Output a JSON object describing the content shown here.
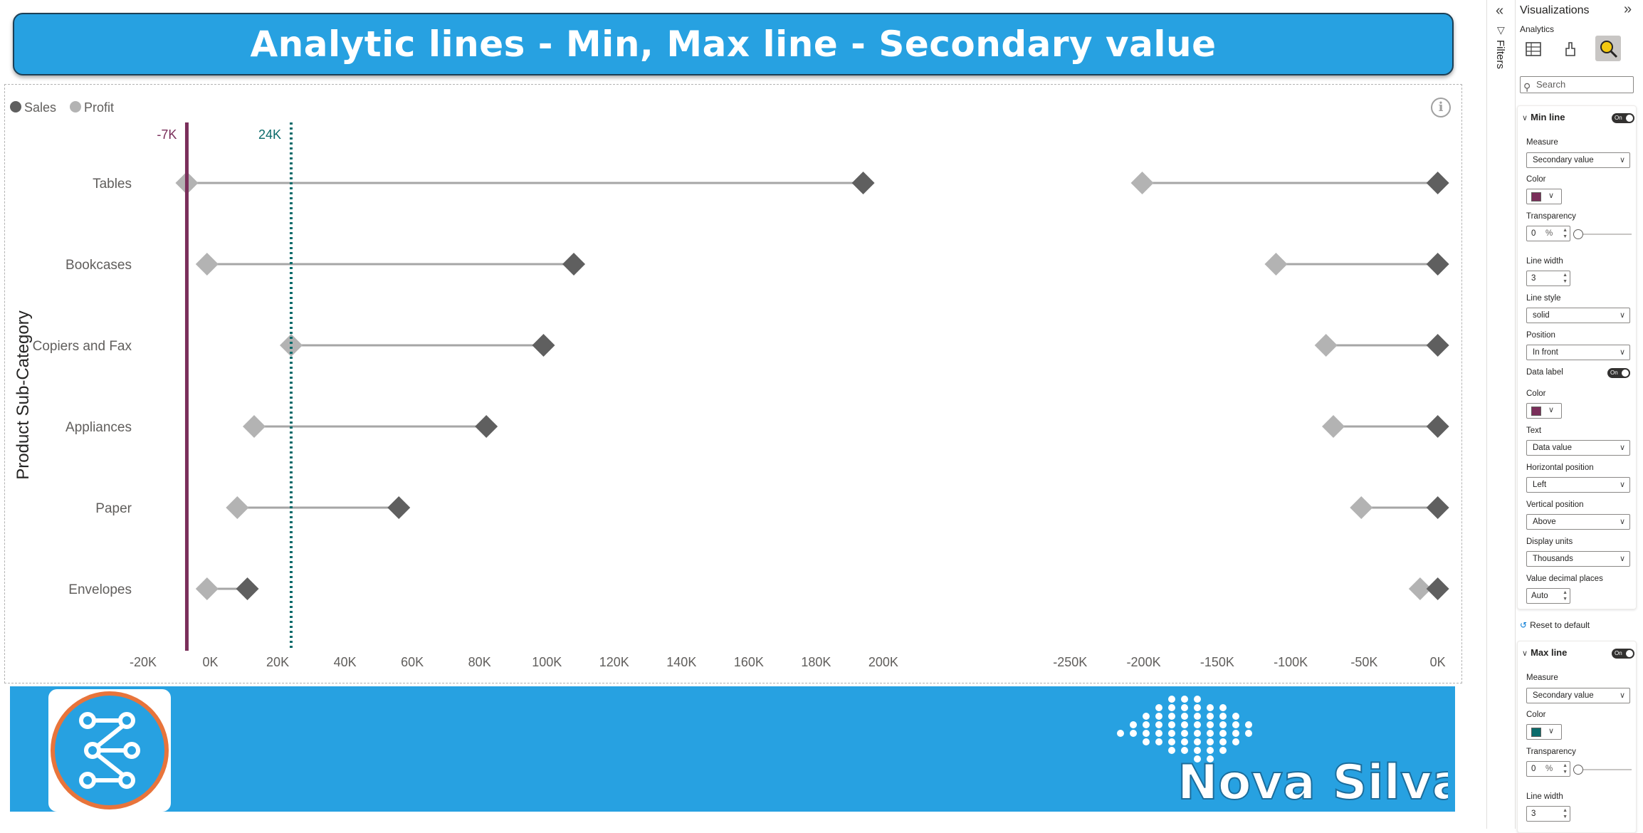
{
  "report": {
    "title": "Analytic lines - Min, Max line - Secondary value",
    "footer_brand": "Nova Silva"
  },
  "chart_data": {
    "type": "dumbbell",
    "y_axis_title": "Product Sub-Category",
    "legend": {
      "position": "top-left",
      "items": [
        {
          "name": "Sales",
          "color": "#5f5f5f"
        },
        {
          "name": "Profit",
          "color": "#b3b3b3"
        }
      ]
    },
    "categories": [
      "Tables",
      "Bookcases",
      "Copiers and Fax",
      "Appliances",
      "Paper",
      "Envelopes"
    ],
    "left_panel": {
      "xlim": [
        -20000,
        240000
      ],
      "ticks": [
        "-20K",
        "0K",
        "20K",
        "40K",
        "60K",
        "80K",
        "100K",
        "120K",
        "140K",
        "160K",
        "180K",
        "200K"
      ],
      "tick_values": [
        -20000,
        0,
        20000,
        40000,
        60000,
        80000,
        100000,
        120000,
        140000,
        160000,
        180000,
        200000
      ],
      "series": [
        {
          "name": "Profit",
          "color": "#b3b3b3",
          "values": [
            -7000,
            -1000,
            24000,
            13000,
            8000,
            -1000
          ]
        },
        {
          "name": "Sales",
          "color": "#5f5f5f",
          "values": [
            194000,
            108000,
            99000,
            82000,
            56000,
            11000
          ]
        }
      ],
      "min_line": {
        "value": -7000,
        "label": "-7K",
        "color": "#7a2e5a",
        "style": "solid",
        "width": 3
      },
      "max_line": {
        "value": 24000,
        "label": "24K",
        "color": "#0b6b6b",
        "style": "dotted",
        "width": 3
      }
    },
    "right_panel": {
      "xlim": [
        -270000,
        5000
      ],
      "ticks": [
        "-250K",
        "-200K",
        "-150K",
        "-100K",
        "-50K",
        "0K"
      ],
      "tick_values": [
        -250000,
        -200000,
        -150000,
        -100000,
        -50000,
        0
      ],
      "series": [
        {
          "name": "Profit",
          "color": "#b3b3b3",
          "values": [
            -201000,
            -110000,
            -76000,
            -71000,
            -52000,
            -12000
          ]
        },
        {
          "name": "Sales",
          "color": "#5f5f5f",
          "values": [
            0,
            0,
            0,
            0,
            0,
            0
          ]
        }
      ]
    }
  },
  "filters_pane": {
    "label": "Filters"
  },
  "viz_pane": {
    "title": "Visualizations",
    "subtitle": "Analytics",
    "search_placeholder": "Search",
    "reset_label": "Reset to default",
    "min_line": {
      "header": "Min line",
      "toggle": "On",
      "measure_label": "Measure",
      "measure_value": "Secondary value",
      "color_label": "Color",
      "color": "#7a2e5a",
      "transparency_label": "Transparency",
      "transparency_value": "0",
      "transparency_unit": "%",
      "line_width_label": "Line width",
      "line_width_value": "3",
      "line_style_label": "Line style",
      "line_style_value": "solid",
      "position_label": "Position",
      "position_value": "In front",
      "data_label_label": "Data label",
      "data_label_toggle": "On",
      "label_color_label": "Color",
      "label_color": "#7a2e5a",
      "text_label": "Text",
      "text_value": "Data value",
      "hpos_label": "Horizontal position",
      "hpos_value": "Left",
      "vpos_label": "Vertical position",
      "vpos_value": "Above",
      "units_label": "Display units",
      "units_value": "Thousands",
      "decimals_label": "Value decimal places",
      "decimals_value": "Auto"
    },
    "max_line": {
      "header": "Max line",
      "toggle": "On",
      "measure_label": "Measure",
      "measure_value": "Secondary value",
      "color_label": "Color",
      "color": "#0b6b6b",
      "transparency_label": "Transparency",
      "transparency_value": "0",
      "transparency_unit": "%",
      "line_width_label": "Line width",
      "line_width_value": "3"
    }
  }
}
